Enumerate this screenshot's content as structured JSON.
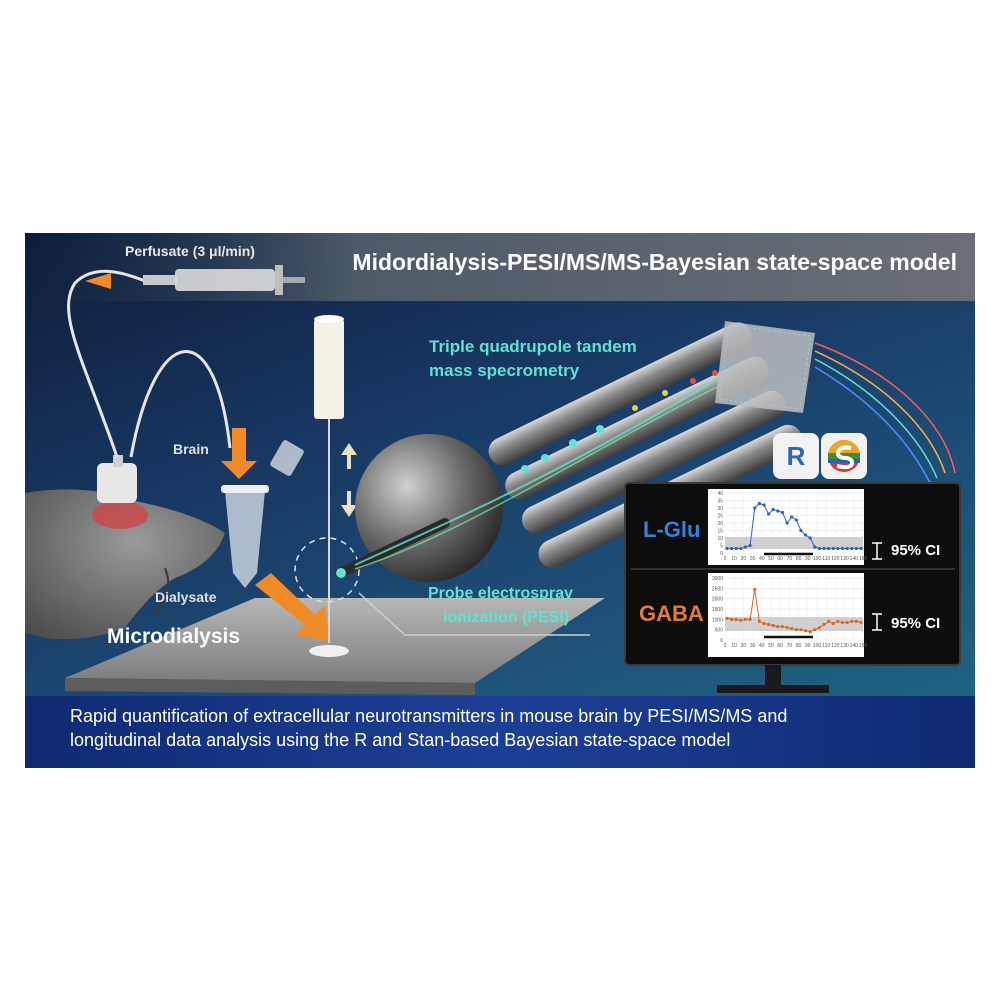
{
  "title": "Midordialysis-PESI/MS/MS-Bayesian state-space model",
  "labels": {
    "perfusate": "Perfusate (3 μl/min)",
    "brain": "Brain",
    "dialysate": "Dialysate",
    "microdialysis": "Microdialysis",
    "triple_quad_line1": "Triple quadrupole tandem",
    "triple_quad_line2": "mass specrometry",
    "pesi_line1": "Probe electrospray",
    "pesi_line2": "ionization (PESI)"
  },
  "logos": {
    "r": "R",
    "stan": "stan-logo"
  },
  "monitor": {
    "glu": {
      "label": "L-Glu",
      "ci": "95% CI",
      "y_ticks": [
        "40",
        "35",
        "30",
        "25",
        "20",
        "15",
        "10",
        "5",
        "0"
      ],
      "x_ticks": [
        "0",
        "10",
        "20",
        "30",
        "40",
        "50",
        "60",
        "70",
        "80",
        "90",
        "100",
        "110",
        "120",
        "130",
        "140",
        "150"
      ],
      "ylim": [
        0,
        40
      ],
      "values": [
        3,
        3,
        3,
        3,
        4,
        5,
        30,
        33,
        32,
        26,
        29,
        28,
        27,
        20,
        24,
        22,
        15,
        12,
        10,
        4,
        3,
        3,
        3,
        3,
        3,
        3,
        3,
        3,
        3,
        3
      ]
    },
    "gaba": {
      "label": "GABA",
      "ci": "95% CI",
      "y_ticks": [
        "3000",
        "2500",
        "2000",
        "1500",
        "1000",
        "500",
        "0"
      ],
      "x_ticks": [
        "0",
        "10",
        "20",
        "30",
        "40",
        "50",
        "60",
        "70",
        "80",
        "90",
        "100",
        "110",
        "120",
        "130",
        "140",
        "150"
      ],
      "ylim": [
        0,
        3000
      ],
      "values": [
        1050,
        1000,
        1000,
        950,
        1000,
        1000,
        2450,
        900,
        800,
        750,
        700,
        650,
        650,
        600,
        550,
        500,
        500,
        450,
        400,
        500,
        600,
        750,
        900,
        800,
        900,
        850,
        850,
        900,
        900,
        850
      ]
    }
  },
  "caption": {
    "line1": "Rapid quantification of extracellular neurotransmitters in mouse brain by PESI/MS/MS and",
    "line2": "longitudinal data analysis using the R and Stan-based Bayesian state-space model"
  },
  "colors": {
    "accent_cyan": "#5fe3cf",
    "glu_blue": "#2f63c0",
    "gaba_orange": "#d86a2a",
    "arrow_orange": "#f08a24",
    "caption_bar": "#1c3f96"
  }
}
